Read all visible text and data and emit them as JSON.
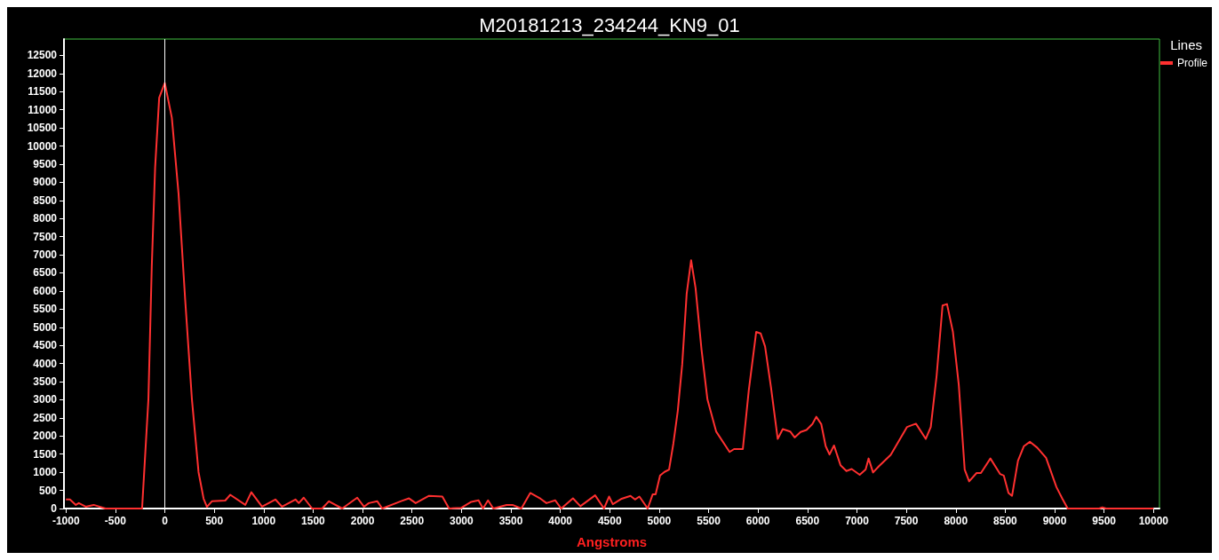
{
  "chart_data": {
    "type": "line",
    "title": "M20181213_234244_KN9_01",
    "xlabel": "Angstroms",
    "legend_title": "Lines",
    "legend": "top right",
    "grid": false,
    "marker": "none",
    "line_style": "solid",
    "xlim": [
      -1020,
      10060
    ],
    "xticks": [
      -1000,
      -500,
      0,
      500,
      1000,
      1500,
      2000,
      2500,
      3000,
      3500,
      4000,
      4500,
      5000,
      5500,
      6000,
      6500,
      7000,
      7500,
      8000,
      8500,
      9000,
      9500,
      10000
    ],
    "ylim": [
      0,
      12950
    ],
    "yticks": [
      0,
      500,
      1000,
      1500,
      2000,
      2500,
      3000,
      3500,
      4000,
      4500,
      5000,
      5500,
      6000,
      6500,
      7000,
      7500,
      8000,
      8500,
      9000,
      9500,
      10000,
      10500,
      11000,
      11500,
      12000,
      12500
    ],
    "ref_lines": [
      {
        "axis": "x",
        "value": 0,
        "color": "#ffffff"
      }
    ],
    "series": [
      {
        "name": "Profile",
        "color": "#ff3030",
        "x": [
          -1000,
          -960,
          -900,
          -870,
          -800,
          -720,
          -600,
          -230,
          -166,
          -132,
          -98,
          -57,
          0,
          71,
          139,
          206,
          274,
          341,
          392,
          426,
          476,
          611,
          662,
          814,
          875,
          983,
          1118,
          1186,
          1321,
          1355,
          1405,
          1490,
          1591,
          1659,
          1794,
          1946,
          2014,
          2064,
          2149,
          2199,
          2385,
          2470,
          2537,
          2672,
          2807,
          2875,
          3000,
          3100,
          3173,
          3218,
          3269,
          3322,
          3457,
          3516,
          3606,
          3696,
          3800,
          3860,
          3949,
          4009,
          4128,
          4203,
          4352,
          4442,
          4493,
          4531,
          4621,
          4710,
          4755,
          4800,
          4884,
          4934,
          4964,
          5009,
          5054,
          5100,
          5144,
          5188,
          5233,
          5278,
          5323,
          5368,
          5428,
          5488,
          5577,
          5712,
          5757,
          5846,
          5906,
          5981,
          6026,
          6071,
          6131,
          6199,
          6250,
          6325,
          6370,
          6430,
          6490,
          6550,
          6589,
          6639,
          6684,
          6723,
          6768,
          6834,
          6894,
          6947,
          7028,
          7088,
          7118,
          7163,
          7223,
          7342,
          7507,
          7597,
          7696,
          7747,
          7806,
          7866,
          7911,
          7971,
          8030,
          8090,
          8135,
          8210,
          8254,
          8350,
          8449,
          8485,
          8533,
          8569,
          8629,
          8689,
          8749,
          8823,
          8913,
          9018,
          9078,
          9132,
          9450,
          9482,
          9520,
          10000
        ],
        "values": [
          250,
          250,
          100,
          150,
          50,
          100,
          0,
          0,
          3015,
          6670,
          9410,
          11330,
          11740,
          10780,
          8680,
          5760,
          3015,
          1005,
          274,
          46,
          200,
          220,
          380,
          100,
          450,
          50,
          250,
          50,
          250,
          150,
          300,
          0,
          0,
          200,
          0,
          300,
          50,
          150,
          200,
          0,
          200,
          280,
          150,
          350,
          330,
          0,
          20,
          185,
          225,
          0,
          225,
          0,
          100,
          100,
          0,
          430,
          270,
          150,
          225,
          0,
          280,
          65,
          365,
          0,
          330,
          120,
          270,
          350,
          250,
          330,
          0,
          390,
          390,
          910,
          1010,
          1075,
          1800,
          2690,
          3980,
          5920,
          6850,
          6080,
          4390,
          3010,
          2120,
          1560,
          1640,
          1640,
          3255,
          4870,
          4830,
          4470,
          3340,
          1920,
          2190,
          2125,
          1960,
          2110,
          2165,
          2330,
          2530,
          2330,
          1720,
          1490,
          1740,
          1195,
          1035,
          1090,
          930,
          1075,
          1380,
          995,
          1170,
          1480,
          2250,
          2340,
          1920,
          2250,
          3660,
          5600,
          5640,
          4870,
          3420,
          1075,
          750,
          980,
          980,
          1380,
          950,
          910,
          430,
          350,
          1320,
          1720,
          1840,
          1680,
          1400,
          590,
          270,
          0,
          0,
          30,
          0,
          0
        ]
      }
    ]
  }
}
